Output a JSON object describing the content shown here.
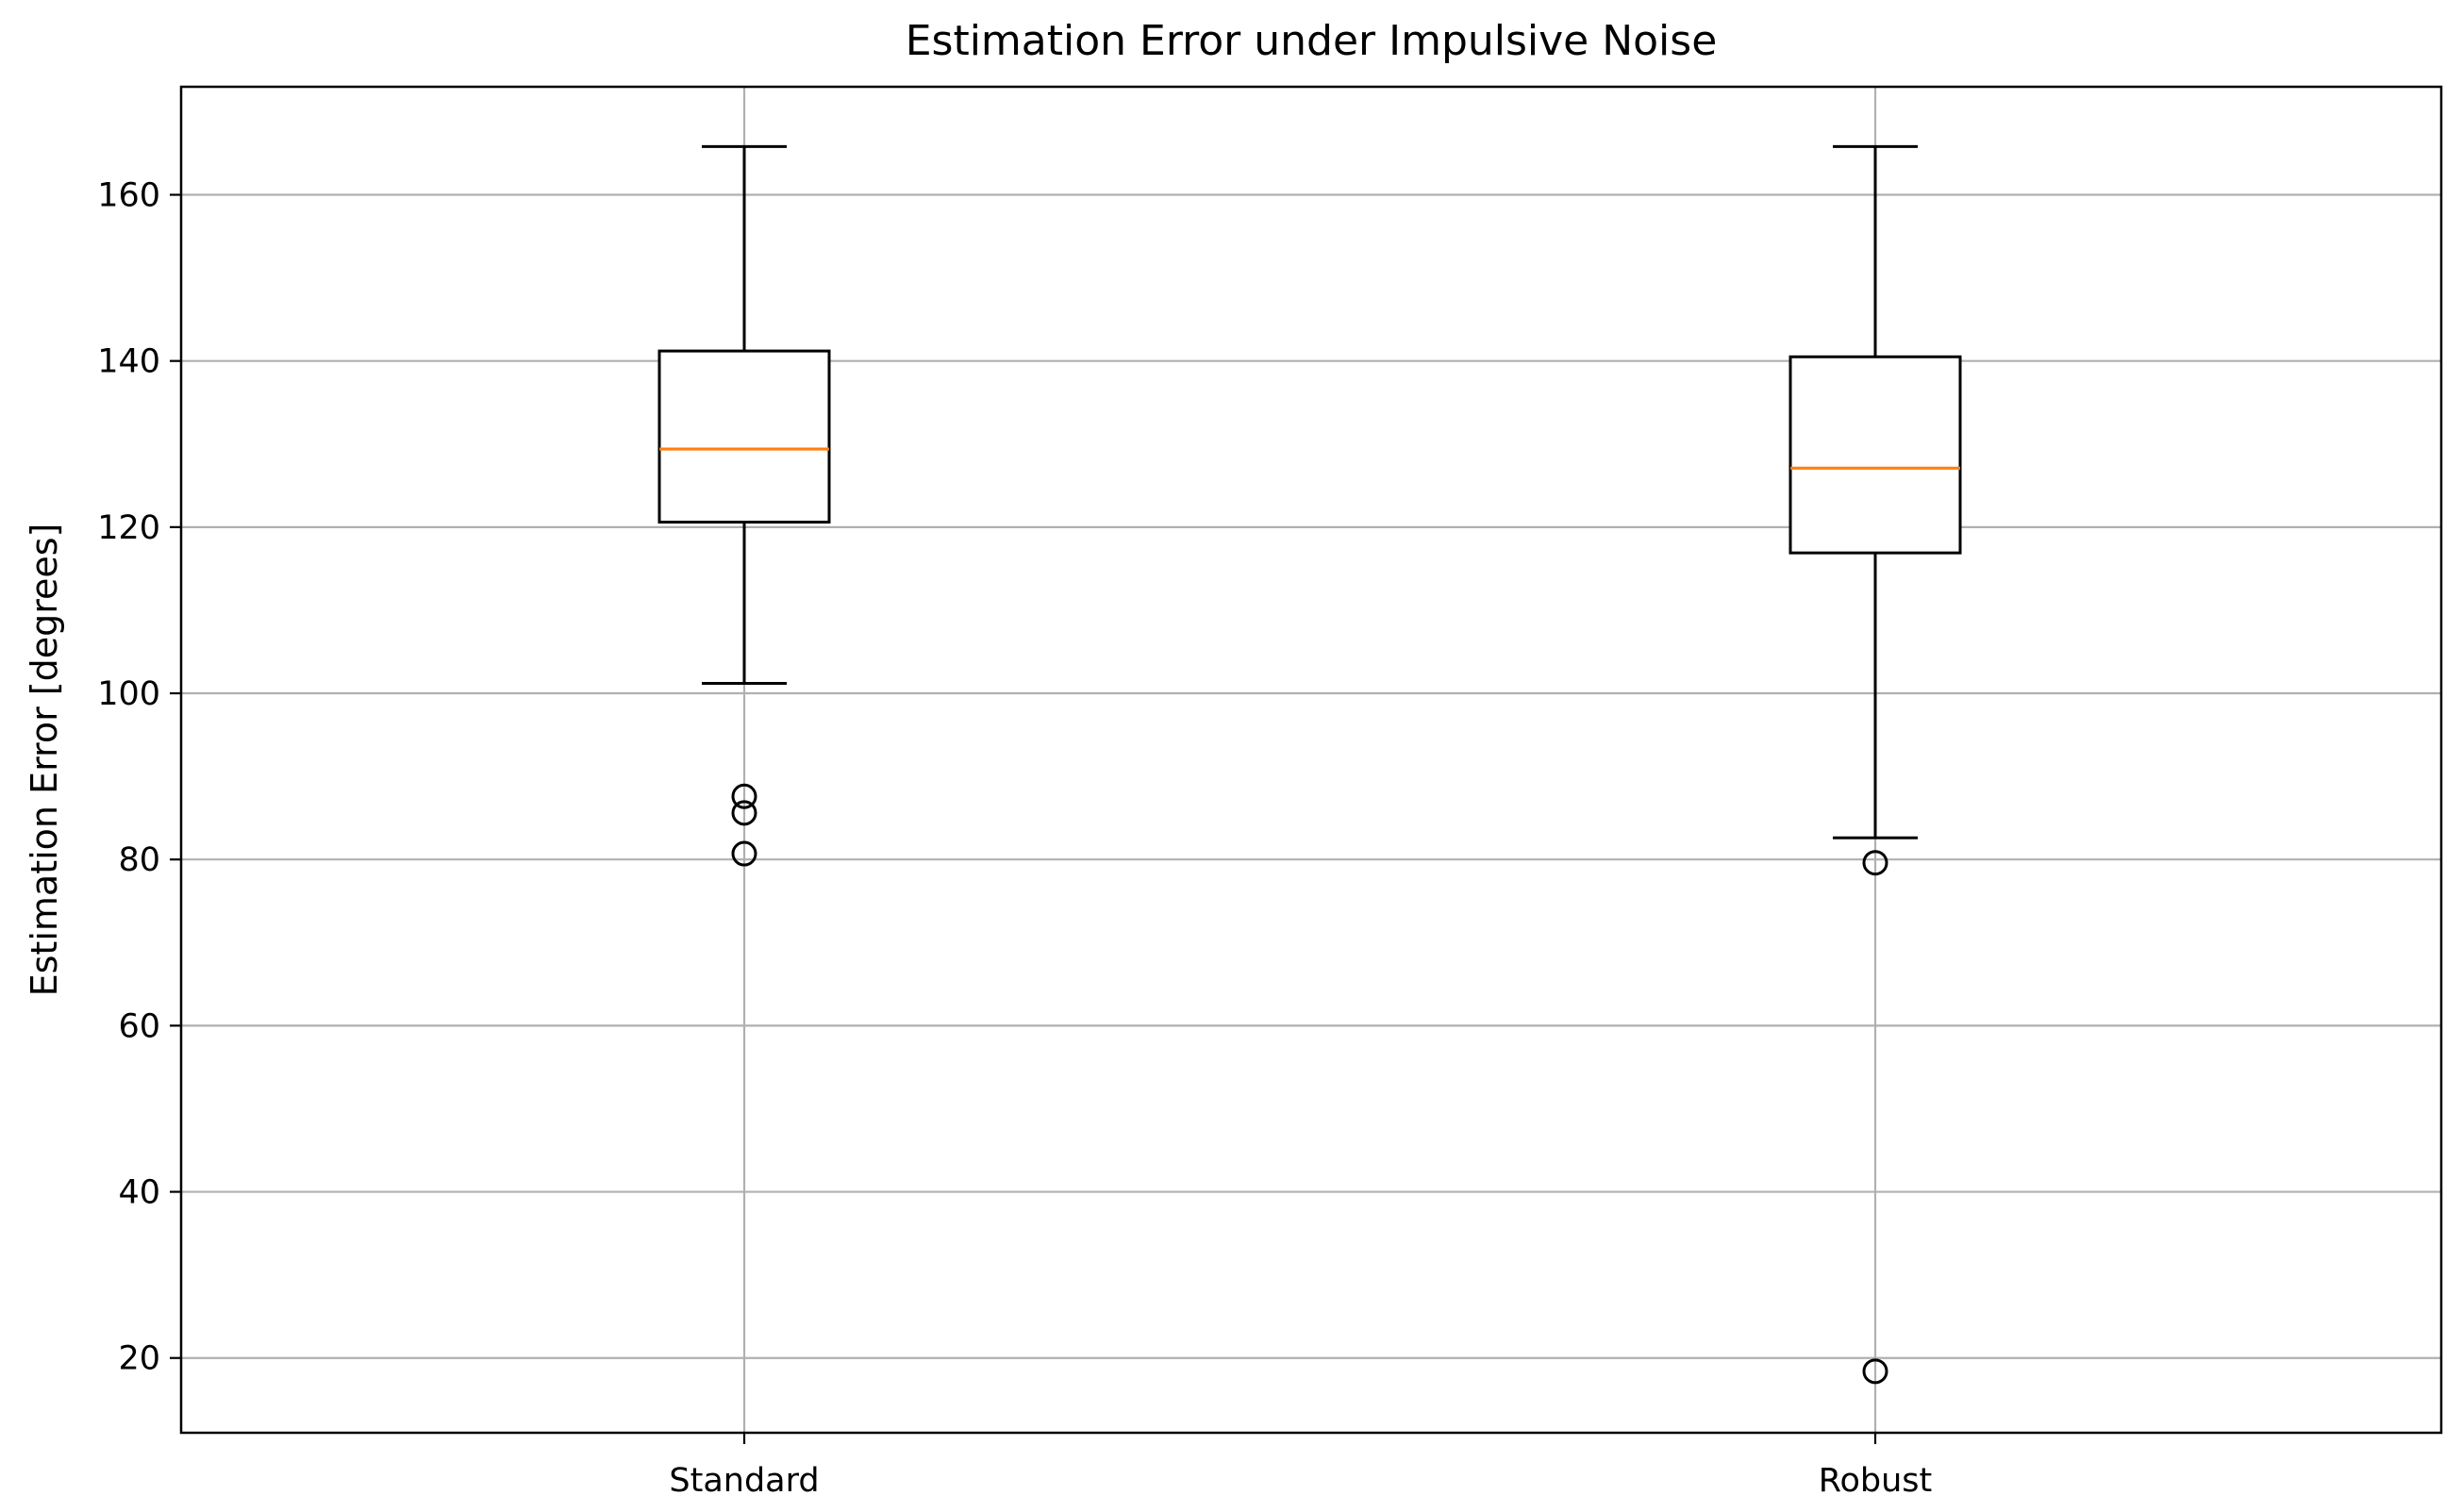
{
  "chart_data": {
    "type": "box",
    "title": "Estimation Error under Impulsive Noise",
    "xlabel": "",
    "ylabel": "Estimation Error [degrees]",
    "categories": [
      "Standard",
      "Robust"
    ],
    "ylim": [
      11,
      173
    ],
    "yticks": [
      20,
      40,
      60,
      80,
      100,
      120,
      140,
      160
    ],
    "grid": true,
    "boxes": [
      {
        "category": "Standard",
        "whisker_low": 101.2,
        "q1": 120.6,
        "median": 129.4,
        "q3": 141.2,
        "whisker_high": 165.8,
        "outliers": [
          87.6,
          85.6,
          80.7
        ]
      },
      {
        "category": "Robust",
        "whisker_low": 82.6,
        "q1": 116.9,
        "median": 127.1,
        "q3": 140.5,
        "whisker_high": 165.8,
        "outliers": [
          79.6,
          18.4
        ]
      }
    ],
    "colors": {
      "box": "#000000",
      "median": "#ff7f0e",
      "grid": "#b0b0b0",
      "axes": "#000000"
    }
  }
}
